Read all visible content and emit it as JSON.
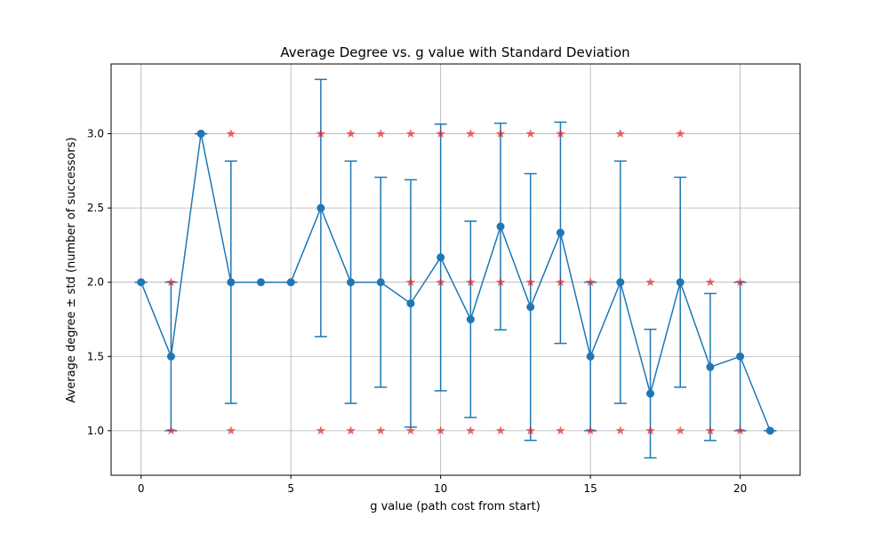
{
  "chart_data": {
    "type": "line",
    "title": "Average Degree vs. g value with Standard Deviation",
    "xlabel": "g value (path cost from start)",
    "ylabel": "Average degree ± std (number of successors)",
    "xlim": [
      -1,
      22
    ],
    "ylim": [
      0.7,
      3.47
    ],
    "xticks": [
      0,
      5,
      10,
      15,
      20
    ],
    "yticks": [
      1.0,
      1.5,
      2.0,
      2.5,
      3.0
    ],
    "xtick_labels": [
      "0",
      "5",
      "10",
      "15",
      "20"
    ],
    "ytick_labels": [
      "1.0",
      "1.5",
      "2.0",
      "2.5",
      "3.0"
    ],
    "grid": true,
    "series": [
      {
        "kind": "errorbar",
        "color": "#1f77b4",
        "marker": "circle",
        "x": [
          0,
          1,
          2,
          3,
          4,
          5,
          6,
          7,
          8,
          9,
          10,
          11,
          12,
          13,
          14,
          15,
          16,
          17,
          18,
          19,
          20,
          21
        ],
        "mean": [
          2.0,
          1.5,
          3.0,
          2.0,
          2.0,
          2.0,
          2.5,
          2.0,
          2.0,
          1.857,
          2.167,
          1.75,
          2.375,
          1.833,
          2.333,
          1.5,
          2.0,
          1.25,
          2.0,
          1.429,
          1.5,
          1.0
        ],
        "std": [
          0,
          0.5,
          0,
          0.816,
          0,
          0,
          0.866,
          0.816,
          0.707,
          0.833,
          0.898,
          0.661,
          0.696,
          0.898,
          0.745,
          0.5,
          0.816,
          0.433,
          0.707,
          0.495,
          0.5,
          0
        ]
      },
      {
        "kind": "scatter",
        "color": "#e31a1c",
        "marker": "star",
        "points": [
          [
            1,
            2
          ],
          [
            1,
            1
          ],
          [
            3,
            3
          ],
          [
            3,
            1
          ],
          [
            6,
            3
          ],
          [
            6,
            1
          ],
          [
            7,
            3
          ],
          [
            7,
            1
          ],
          [
            8,
            3
          ],
          [
            8,
            1
          ],
          [
            9,
            3
          ],
          [
            9,
            2
          ],
          [
            9,
            1
          ],
          [
            10,
            3
          ],
          [
            10,
            2
          ],
          [
            10,
            1
          ],
          [
            11,
            3
          ],
          [
            11,
            2
          ],
          [
            11,
            1
          ],
          [
            12,
            3
          ],
          [
            12,
            2
          ],
          [
            12,
            1
          ],
          [
            13,
            3
          ],
          [
            13,
            2
          ],
          [
            13,
            1
          ],
          [
            14,
            3
          ],
          [
            14,
            2
          ],
          [
            14,
            1
          ],
          [
            15,
            2
          ],
          [
            15,
            1
          ],
          [
            16,
            3
          ],
          [
            16,
            1
          ],
          [
            17,
            2
          ],
          [
            17,
            1
          ],
          [
            18,
            3
          ],
          [
            18,
            1
          ],
          [
            19,
            2
          ],
          [
            19,
            1
          ],
          [
            20,
            2
          ],
          [
            20,
            1
          ]
        ]
      }
    ]
  }
}
